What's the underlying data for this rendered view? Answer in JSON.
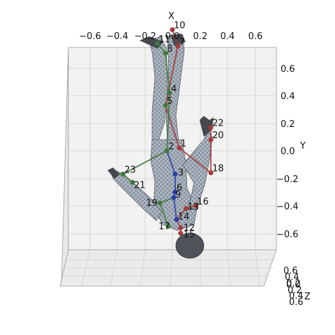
{
  "chart_data": {
    "type": "3d-skeleton-mesh",
    "title": "",
    "xlabel": "X",
    "ylabel": "Y",
    "zlabel": "Z",
    "xlim": [
      -0.75,
      0.75
    ],
    "ylim": [
      -0.75,
      0.75
    ],
    "zlim": [
      -0.75,
      0.75
    ],
    "x_ticks": [
      "−0.6",
      "−0.4",
      "−0.2",
      "0.0",
      "0.2",
      "0.4",
      "0.6"
    ],
    "y_ticks": [
      "0.6",
      "0.4",
      "0.2",
      "0.0",
      "−0.2",
      "−0.4",
      "−0.6"
    ],
    "z_ticks": [
      "0.6",
      "0.4",
      "0.2",
      "0.0",
      "0.2",
      "0.4",
      "0.6"
    ],
    "grid": true,
    "joints": [
      {
        "id": "1",
        "x": 0.05,
        "y": 0.02,
        "side": "right"
      },
      {
        "id": "2",
        "x": -0.04,
        "y": 0.0,
        "side": "left"
      },
      {
        "id": "3",
        "x": 0.02,
        "y": -0.17,
        "side": "center"
      },
      {
        "id": "4",
        "x": -0.02,
        "y": 0.42,
        "side": "left"
      },
      {
        "id": "5",
        "x": -0.05,
        "y": 0.33,
        "side": "left"
      },
      {
        "id": "6",
        "x": 0.02,
        "y": -0.3,
        "side": "center"
      },
      {
        "id": "7",
        "x": 0.04,
        "y": 0.76,
        "side": "right"
      },
      {
        "id": "8",
        "x": -0.05,
        "y": 0.71,
        "side": "left"
      },
      {
        "id": "9",
        "x": 0.01,
        "y": -0.34,
        "side": "center"
      },
      {
        "id": "10",
        "x": 0.0,
        "y": 0.88,
        "side": "right"
      },
      {
        "id": "11",
        "x": -0.11,
        "y": 0.78,
        "side": "left"
      },
      {
        "id": "12",
        "x": 0.06,
        "y": -0.56,
        "side": "right"
      },
      {
        "id": "13",
        "x": 0.1,
        "y": -0.42,
        "side": "right"
      },
      {
        "id": "14",
        "x": 0.03,
        "y": -0.5,
        "side": "center"
      },
      {
        "id": "15",
        "x": 0.06,
        "y": -0.6,
        "side": "right"
      },
      {
        "id": "16",
        "x": 0.17,
        "y": -0.4,
        "side": "right"
      },
      {
        "id": "17",
        "x": -0.03,
        "y": -0.55,
        "side": "left"
      },
      {
        "id": "18",
        "x": 0.28,
        "y": -0.16,
        "side": "right"
      },
      {
        "id": "19",
        "x": -0.09,
        "y": -0.38,
        "side": "left"
      },
      {
        "id": "20",
        "x": 0.28,
        "y": 0.08,
        "side": "right"
      },
      {
        "id": "21",
        "x": -0.29,
        "y": -0.23,
        "side": "left"
      },
      {
        "id": "22",
        "x": 0.28,
        "y": 0.17,
        "side": "right"
      },
      {
        "id": "23",
        "x": -0.36,
        "y": -0.17,
        "side": "left"
      }
    ],
    "bones_blue": [
      [
        "14",
        "9"
      ],
      [
        "9",
        "6"
      ],
      [
        "6",
        "3"
      ],
      [
        "3",
        "2"
      ]
    ],
    "bones_red": [
      [
        "1",
        "5"
      ],
      [
        "5",
        "7"
      ],
      [
        "7",
        "10"
      ],
      [
        "1",
        "18"
      ],
      [
        "18",
        "20"
      ],
      [
        "20",
        "22"
      ],
      [
        "14",
        "13"
      ],
      [
        "13",
        "16"
      ],
      [
        "14",
        "12"
      ],
      [
        "12",
        "15"
      ]
    ],
    "bones_green": [
      [
        "2",
        "4"
      ],
      [
        "4",
        "8"
      ],
      [
        "8",
        "11"
      ],
      [
        "2",
        "23"
      ],
      [
        "23",
        "21"
      ],
      [
        "9",
        "19"
      ],
      [
        "19",
        "17"
      ]
    ],
    "colors": {
      "mesh_fill": "#a9b4bf",
      "mesh_line": "#4a5561",
      "dark": "#3b3f44",
      "blue": "#2b3fa8",
      "red": "#a23a3a",
      "green": "#3f7a3f",
      "pane": "#f2f2f2",
      "grid": "#cfcfcf"
    }
  }
}
